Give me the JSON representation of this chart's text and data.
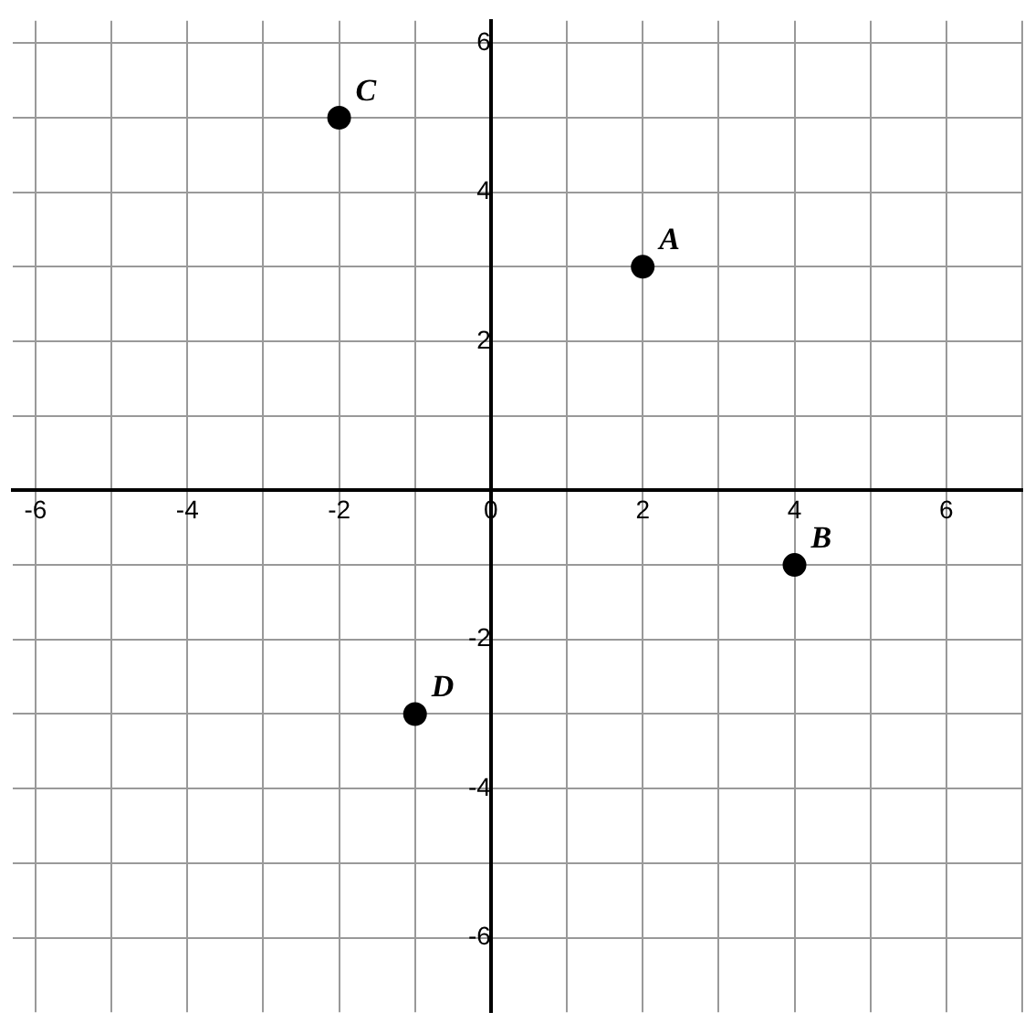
{
  "chart_data": {
    "type": "scatter",
    "x": [
      2,
      4,
      -2,
      -1
    ],
    "values": [
      3,
      -1,
      5,
      -3
    ],
    "color": "#000000",
    "marker": "circle",
    "grid": true,
    "legend": false,
    "xlim": [
      -6.3,
      7
    ],
    "ylim": [
      -7,
      6.3
    ],
    "xticks": [
      -6,
      {
        "value": -5,
        "label": null
      },
      -4,
      {
        "value": -3,
        "label": null
      },
      -2,
      {
        "value": -1,
        "label": null
      },
      0,
      {
        "value": 1,
        "label": null
      },
      2,
      {
        "value": 3,
        "label": null
      },
      4,
      {
        "value": 5,
        "label": null
      },
      6,
      {
        "value": 7,
        "label": null
      }
    ],
    "yticks": [
      -6,
      {
        "value": -5,
        "label": null
      },
      -4,
      {
        "value": -3,
        "label": null
      },
      -2,
      {
        "value": -1,
        "label": null
      },
      {
        "value": 0,
        "label": null
      },
      {
        "value": 1,
        "label": null
      },
      2,
      {
        "value": 3,
        "label": null
      },
      4,
      {
        "value": 5,
        "label": null
      },
      6
    ],
    "annotations": [
      {
        "text": "A",
        "x": 2,
        "y": 3
      },
      {
        "text": "B",
        "x": 4,
        "y": -1
      },
      {
        "text": "C",
        "x": -2,
        "y": 5
      },
      {
        "text": "D",
        "x": -1,
        "y": -3
      }
    ]
  }
}
